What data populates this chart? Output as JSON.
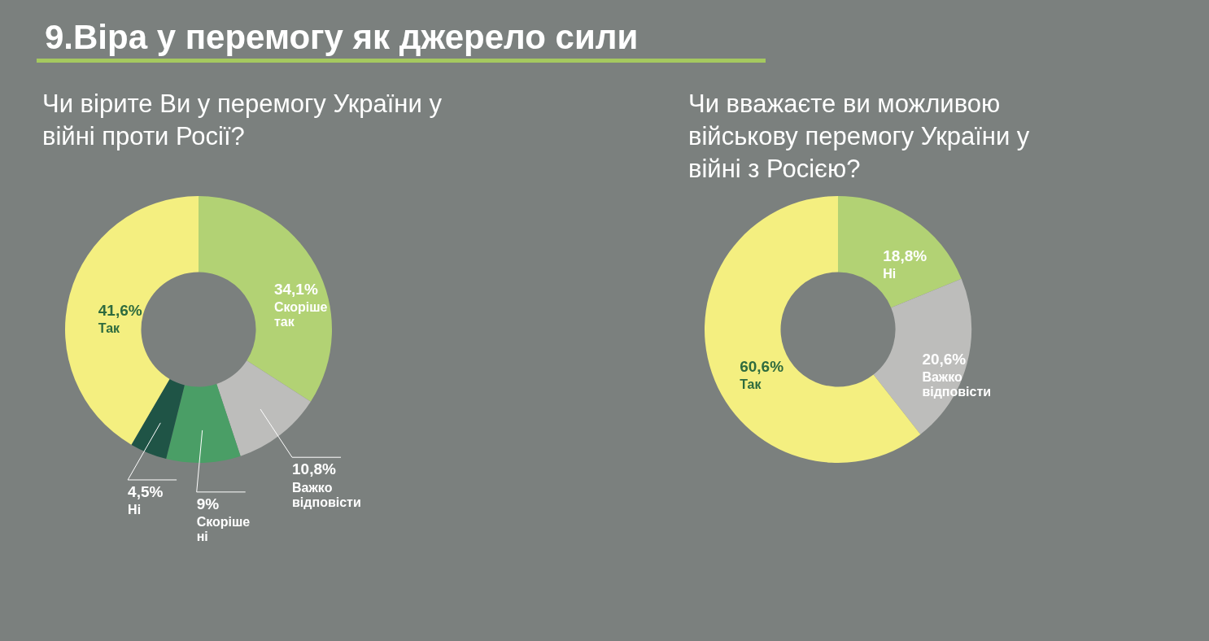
{
  "chart_data": [
    {
      "type": "donut",
      "title": "9.Віра у перемогу як джерело сили",
      "subtitle": "Чи вірите Ви у перемогу України у війні проти Росії?",
      "categories": [
        "Скоріше так",
        "Важко відповісти",
        "Скоріше ні",
        "Ні",
        "Так"
      ],
      "values": [
        34.1,
        10.8,
        9,
        4.5,
        41.6
      ],
      "value_labels": [
        "34,1%",
        "10,8%",
        "9%",
        "4,5%",
        "41,6%"
      ],
      "colors": [
        "#b2d274",
        "#bdbdbb",
        "#4a9e66",
        "#1f5446",
        "#f4ef80"
      ]
    },
    {
      "type": "donut",
      "title": "Чи вважаєте ви можливою військову перемогу України у війні з Росією?",
      "categories": [
        "Ні",
        "Важко відповісти",
        "Так"
      ],
      "values": [
        18.8,
        20.6,
        60.6
      ],
      "value_labels": [
        "18,8%",
        "20,6%",
        "60,6%"
      ],
      "colors": [
        "#b2d274",
        "#bdbdbb",
        "#f4ef80"
      ]
    }
  ]
}
